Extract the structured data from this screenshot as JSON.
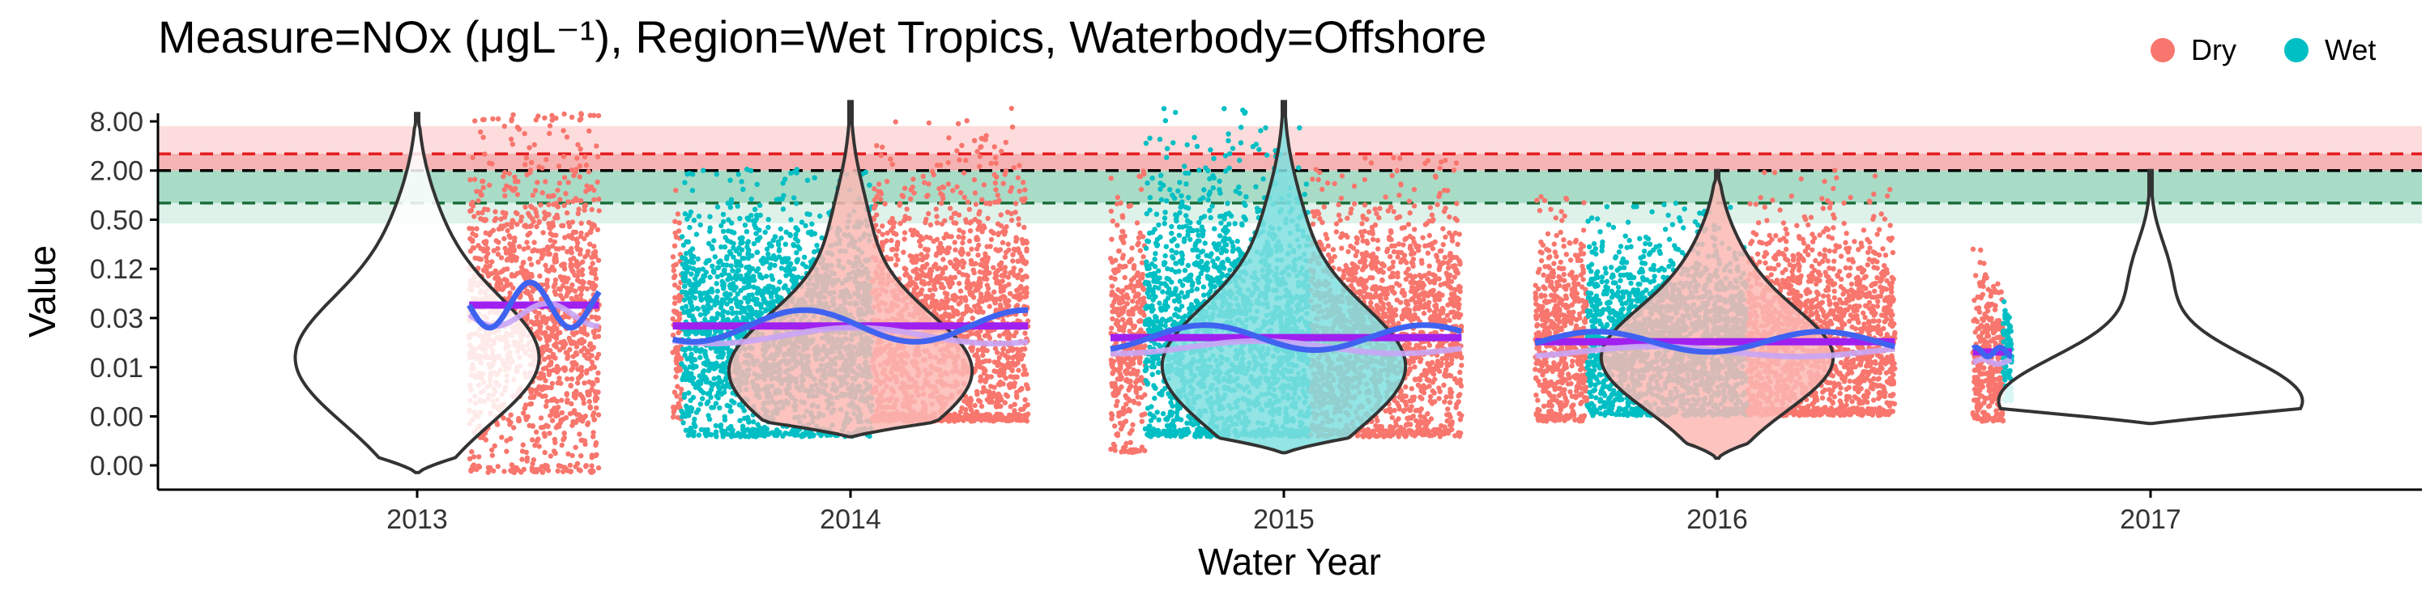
{
  "chart_data": {
    "type": "violin-scatter",
    "title": "Measure=NOx (μgL⁻¹), Region=Wet Tropics, Waterbody=Offshore",
    "xlabel": "Water Year",
    "ylabel": "Value",
    "y_scale": "log",
    "y_ticks": [
      {
        "label": "8.00",
        "value": 8
      },
      {
        "label": "2.00",
        "value": 2
      },
      {
        "label": "0.50",
        "value": 0.5
      },
      {
        "label": "0.12",
        "value": 0.125
      },
      {
        "label": "0.03",
        "value": 0.03125
      },
      {
        "label": "0.01",
        "value": 0.0078
      },
      {
        "label": "0.00",
        "value": 0.00195
      },
      {
        "label": "0.00",
        "value": 0.00049
      }
    ],
    "ylim": [
      0.0003,
      14
    ],
    "x_categories": [
      "2013",
      "2014",
      "2015",
      "2016",
      "2017"
    ],
    "legend": {
      "position": "top-right",
      "entries": [
        {
          "name": "Dry",
          "color": "#F8766D"
        },
        {
          "name": "Wet",
          "color": "#00BFC4"
        }
      ]
    },
    "guidelines": [
      {
        "value": 3.2,
        "color": "#e31a1c",
        "style": "dashed"
      },
      {
        "value": 2.0,
        "color": "#000000",
        "style": "dashed"
      },
      {
        "value": 0.8,
        "color": "#1b6e3a",
        "style": "dashed"
      }
    ],
    "bands": [
      {
        "from": 2.0,
        "to": 7.0,
        "color": "#fcdcdc"
      },
      {
        "from": 2.0,
        "to": 3.2,
        "color": "#f6b3b3"
      },
      {
        "from": 0.8,
        "to": 2.0,
        "color": "#a8dcc7"
      },
      {
        "from": 0.45,
        "to": 0.8,
        "color": "#def2ea"
      }
    ],
    "years": [
      {
        "year": "2013",
        "violin": {
          "min": 0.0004,
          "max": 10,
          "mode": 0.01,
          "width": 1.0
        },
        "segments": [
          {
            "season": "Dry",
            "start": 0.12,
            "end": 0.42,
            "min": 0.0004,
            "max": 10,
            "center": 0.03
          }
        ],
        "mean": 0.045,
        "trend_amp": 1.0
      },
      {
        "year": "2014",
        "violin": {
          "min": 0.0011,
          "max": 14,
          "mode": 0.007,
          "width": 1.0
        },
        "segments": [
          {
            "season": "Dry",
            "start": -0.41,
            "end": -0.39,
            "min": 0.0017,
            "max": 2.0,
            "center": 0.02
          },
          {
            "season": "Wet",
            "start": -0.39,
            "end": 0.05,
            "min": 0.0011,
            "max": 2.1,
            "center": 0.02
          },
          {
            "season": "Dry",
            "start": 0.05,
            "end": 0.41,
            "min": 0.0017,
            "max": 13,
            "center": 0.02
          }
        ],
        "mean": 0.025,
        "trend_amp": 0.7
      },
      {
        "year": "2015",
        "violin": {
          "min": 0.0007,
          "max": 14,
          "mode": 0.008,
          "width": 1.0
        },
        "segments": [
          {
            "season": "Dry",
            "start": -0.4,
            "end": -0.32,
            "min": 0.0007,
            "max": 2.0,
            "center": 0.018
          },
          {
            "season": "Wet",
            "start": -0.32,
            "end": 0.06,
            "min": 0.0011,
            "max": 12,
            "center": 0.02
          },
          {
            "season": "Dry",
            "start": 0.06,
            "end": 0.41,
            "min": 0.0011,
            "max": 3.0,
            "center": 0.018
          }
        ],
        "mean": 0.018,
        "trend_amp": 0.55
      },
      {
        "year": "2016",
        "violin": {
          "min": 0.0006,
          "max": 2.0,
          "mode": 0.01,
          "width": 0.95
        },
        "segments": [
          {
            "season": "Dry",
            "start": -0.42,
            "end": -0.3,
            "min": 0.0017,
            "max": 1.0,
            "center": 0.015
          },
          {
            "season": "Wet",
            "start": -0.3,
            "end": 0.07,
            "min": 0.002,
            "max": 0.8,
            "center": 0.015
          },
          {
            "season": "Dry",
            "start": 0.07,
            "end": 0.41,
            "min": 0.002,
            "max": 2.2,
            "center": 0.015
          }
        ],
        "mean": 0.016,
        "trend_amp": 0.45
      },
      {
        "year": "2017",
        "violin": {
          "min": 0.0016,
          "max": 2.0,
          "mode": 0.003,
          "width": 1.25,
          "horizontal_bulge": true
        },
        "segments": [
          {
            "season": "Dry",
            "start": -0.41,
            "end": -0.34,
            "min": 0.0017,
            "max": 0.35,
            "center": 0.01
          },
          {
            "season": "Wet",
            "start": -0.34,
            "end": -0.32,
            "min": 0.003,
            "max": 0.1,
            "center": 0.01
          }
        ],
        "mean": 0.012,
        "trend_amp": 0.2
      }
    ],
    "colors": {
      "dry": "#F8766D",
      "wet": "#00BFC4",
      "dry_light": "#FBB9B4",
      "wet_light": "#80DFE1",
      "trend": "#3F63F0",
      "mean": "#A020F0",
      "mean_light": "#C9A5F5",
      "violin_stroke": "#333333"
    }
  }
}
